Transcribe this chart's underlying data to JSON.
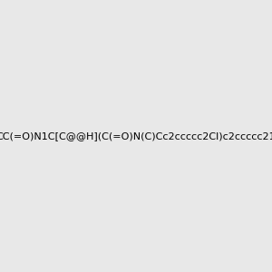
{
  "smiles": "CC(=O)N1C[C@@H](C(=O)N(C)Cc2ccccc2Cl)c2ccccc21",
  "background_color": "#e8e8e8",
  "image_size": 300,
  "atom_colors": {
    "N": "#0000FF",
    "O": "#FF0000",
    "Cl": "#00CC00"
  },
  "title": ""
}
